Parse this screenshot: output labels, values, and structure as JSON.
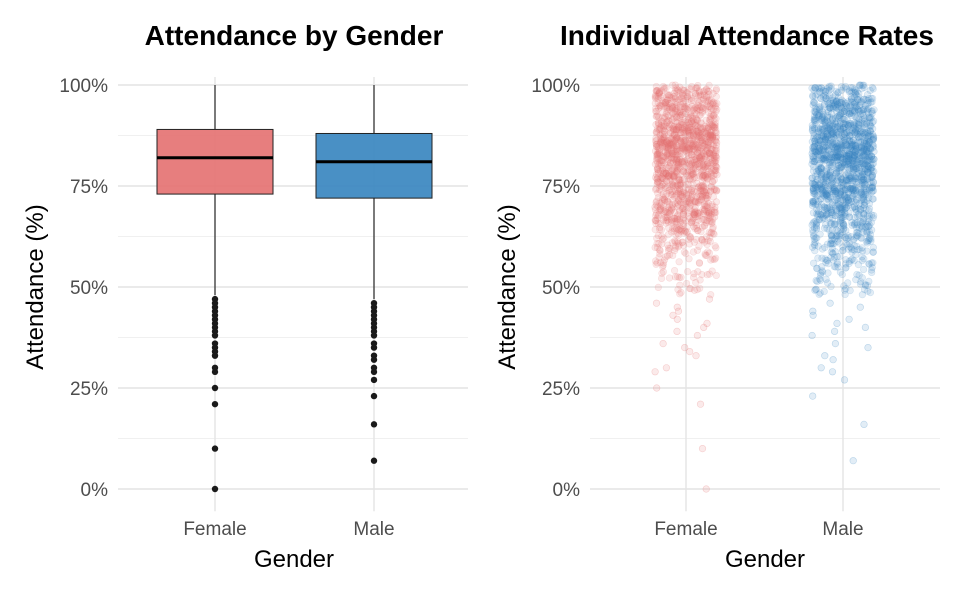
{
  "chart_data": [
    {
      "type": "box",
      "title": "Attendance by Gender",
      "xlabel": "Gender",
      "ylabel": "Attendance (%)",
      "y_tick_labels": [
        "0%",
        "25%",
        "50%",
        "75%",
        "100%"
      ],
      "y_ticks": [
        0,
        25,
        50,
        75,
        100
      ],
      "ylim": [
        -5,
        101
      ],
      "categories": [
        "Female",
        "Male"
      ],
      "colors": [
        "#e57373",
        "#3a87c0"
      ],
      "grid": true,
      "boxes": [
        {
          "category": "Female",
          "whisker_low": 48,
          "q1": 73,
          "median": 82,
          "q3": 89,
          "whisker_high": 100,
          "outliers": [
            47,
            46,
            45,
            44,
            43,
            42,
            41,
            40,
            39,
            38,
            36,
            35,
            34,
            33,
            30,
            29,
            25,
            21,
            10,
            0
          ]
        },
        {
          "category": "Male",
          "whisker_low": 47,
          "q1": 72,
          "median": 81,
          "q3": 88,
          "whisker_high": 100,
          "outliers": [
            46,
            45,
            44,
            43,
            42,
            41,
            40,
            39,
            38,
            36,
            35,
            33,
            32,
            30,
            29,
            27,
            23,
            16,
            7
          ]
        }
      ]
    },
    {
      "type": "scatter",
      "title": "Individual Attendance Rates",
      "xlabel": "Gender",
      "ylabel": "Attendance (%)",
      "y_tick_labels": [
        "0%",
        "25%",
        "50%",
        "75%",
        "100%"
      ],
      "y_ticks": [
        0,
        25,
        50,
        75,
        100
      ],
      "ylim": [
        -5,
        101
      ],
      "categories": [
        "Female",
        "Male"
      ],
      "colors": [
        "#e57373",
        "#3a87c0"
      ],
      "jitter": true,
      "point_alpha": 0.15,
      "grid": true,
      "series": [
        {
          "name": "Female",
          "n_points": 1400,
          "distribution": {
            "median": 82,
            "q1": 73,
            "q3": 89,
            "max": 100,
            "min": 0
          },
          "low_points": [
            47,
            46,
            45,
            44,
            43,
            42,
            41,
            40,
            39,
            38,
            36,
            35,
            34,
            33,
            30,
            29,
            25,
            21,
            10,
            0
          ]
        },
        {
          "name": "Male",
          "n_points": 1500,
          "distribution": {
            "median": 81,
            "q1": 72,
            "q3": 88,
            "max": 100,
            "min": 7
          },
          "low_points": [
            46,
            45,
            44,
            43,
            42,
            41,
            40,
            39,
            38,
            36,
            35,
            33,
            32,
            30,
            29,
            27,
            23,
            16,
            7
          ]
        }
      ]
    }
  ]
}
